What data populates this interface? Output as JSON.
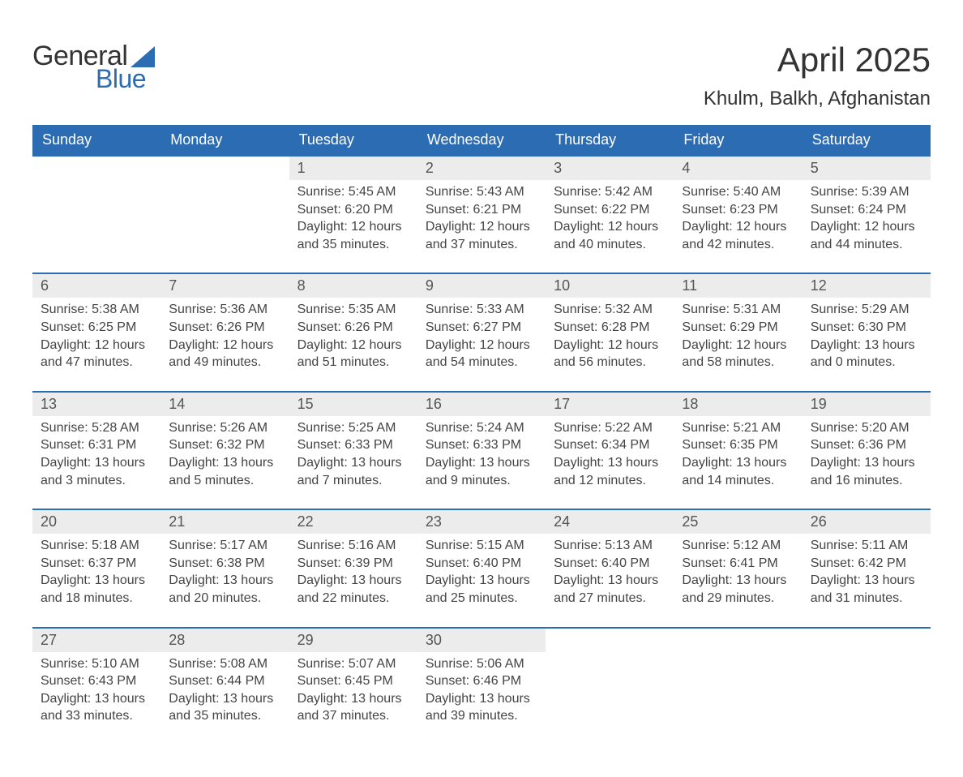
{
  "brand": {
    "word1": "General",
    "word2": "Blue",
    "text_color": "#333333",
    "accent_color": "#2b6cb3"
  },
  "title": "April 2025",
  "location": "Khulm, Balkh, Afghanistan",
  "colors": {
    "header_bg": "#2b6cb3",
    "header_fg": "#ffffff",
    "daynum_bg": "#ececec",
    "daynum_fg": "#555555",
    "week_separator": "#2b6cb3",
    "body_text": "#444444",
    "page_bg": "#ffffff"
  },
  "day_names": [
    "Sunday",
    "Monday",
    "Tuesday",
    "Wednesday",
    "Thursday",
    "Friday",
    "Saturday"
  ],
  "weeks": [
    [
      null,
      null,
      {
        "d": "1",
        "sunrise": "5:45 AM",
        "sunset": "6:20 PM",
        "daylight": "12 hours and 35 minutes."
      },
      {
        "d": "2",
        "sunrise": "5:43 AM",
        "sunset": "6:21 PM",
        "daylight": "12 hours and 37 minutes."
      },
      {
        "d": "3",
        "sunrise": "5:42 AM",
        "sunset": "6:22 PM",
        "daylight": "12 hours and 40 minutes."
      },
      {
        "d": "4",
        "sunrise": "5:40 AM",
        "sunset": "6:23 PM",
        "daylight": "12 hours and 42 minutes."
      },
      {
        "d": "5",
        "sunrise": "5:39 AM",
        "sunset": "6:24 PM",
        "daylight": "12 hours and 44 minutes."
      }
    ],
    [
      {
        "d": "6",
        "sunrise": "5:38 AM",
        "sunset": "6:25 PM",
        "daylight": "12 hours and 47 minutes."
      },
      {
        "d": "7",
        "sunrise": "5:36 AM",
        "sunset": "6:26 PM",
        "daylight": "12 hours and 49 minutes."
      },
      {
        "d": "8",
        "sunrise": "5:35 AM",
        "sunset": "6:26 PM",
        "daylight": "12 hours and 51 minutes."
      },
      {
        "d": "9",
        "sunrise": "5:33 AM",
        "sunset": "6:27 PM",
        "daylight": "12 hours and 54 minutes."
      },
      {
        "d": "10",
        "sunrise": "5:32 AM",
        "sunset": "6:28 PM",
        "daylight": "12 hours and 56 minutes."
      },
      {
        "d": "11",
        "sunrise": "5:31 AM",
        "sunset": "6:29 PM",
        "daylight": "12 hours and 58 minutes."
      },
      {
        "d": "12",
        "sunrise": "5:29 AM",
        "sunset": "6:30 PM",
        "daylight": "13 hours and 0 minutes."
      }
    ],
    [
      {
        "d": "13",
        "sunrise": "5:28 AM",
        "sunset": "6:31 PM",
        "daylight": "13 hours and 3 minutes."
      },
      {
        "d": "14",
        "sunrise": "5:26 AM",
        "sunset": "6:32 PM",
        "daylight": "13 hours and 5 minutes."
      },
      {
        "d": "15",
        "sunrise": "5:25 AM",
        "sunset": "6:33 PM",
        "daylight": "13 hours and 7 minutes."
      },
      {
        "d": "16",
        "sunrise": "5:24 AM",
        "sunset": "6:33 PM",
        "daylight": "13 hours and 9 minutes."
      },
      {
        "d": "17",
        "sunrise": "5:22 AM",
        "sunset": "6:34 PM",
        "daylight": "13 hours and 12 minutes."
      },
      {
        "d": "18",
        "sunrise": "5:21 AM",
        "sunset": "6:35 PM",
        "daylight": "13 hours and 14 minutes."
      },
      {
        "d": "19",
        "sunrise": "5:20 AM",
        "sunset": "6:36 PM",
        "daylight": "13 hours and 16 minutes."
      }
    ],
    [
      {
        "d": "20",
        "sunrise": "5:18 AM",
        "sunset": "6:37 PM",
        "daylight": "13 hours and 18 minutes."
      },
      {
        "d": "21",
        "sunrise": "5:17 AM",
        "sunset": "6:38 PM",
        "daylight": "13 hours and 20 minutes."
      },
      {
        "d": "22",
        "sunrise": "5:16 AM",
        "sunset": "6:39 PM",
        "daylight": "13 hours and 22 minutes."
      },
      {
        "d": "23",
        "sunrise": "5:15 AM",
        "sunset": "6:40 PM",
        "daylight": "13 hours and 25 minutes."
      },
      {
        "d": "24",
        "sunrise": "5:13 AM",
        "sunset": "6:40 PM",
        "daylight": "13 hours and 27 minutes."
      },
      {
        "d": "25",
        "sunrise": "5:12 AM",
        "sunset": "6:41 PM",
        "daylight": "13 hours and 29 minutes."
      },
      {
        "d": "26",
        "sunrise": "5:11 AM",
        "sunset": "6:42 PM",
        "daylight": "13 hours and 31 minutes."
      }
    ],
    [
      {
        "d": "27",
        "sunrise": "5:10 AM",
        "sunset": "6:43 PM",
        "daylight": "13 hours and 33 minutes."
      },
      {
        "d": "28",
        "sunrise": "5:08 AM",
        "sunset": "6:44 PM",
        "daylight": "13 hours and 35 minutes."
      },
      {
        "d": "29",
        "sunrise": "5:07 AM",
        "sunset": "6:45 PM",
        "daylight": "13 hours and 37 minutes."
      },
      {
        "d": "30",
        "sunrise": "5:06 AM",
        "sunset": "6:46 PM",
        "daylight": "13 hours and 39 minutes."
      },
      null,
      null,
      null
    ]
  ],
  "labels": {
    "sunrise": "Sunrise:",
    "sunset": "Sunset:",
    "daylight": "Daylight:"
  }
}
